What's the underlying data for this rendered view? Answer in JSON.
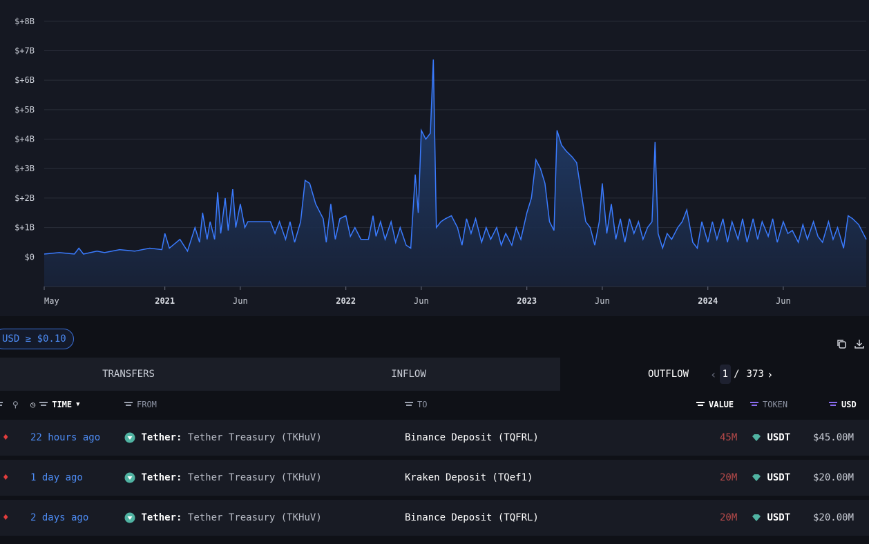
{
  "chart_data": {
    "type": "area",
    "y_ticks": [
      "$+8B",
      "$+7B",
      "$+6B",
      "$+5B",
      "$+4B",
      "$+3B",
      "$+2B",
      "$+1B",
      "$0"
    ],
    "y_unit": "USD billions",
    "ylim": [
      -1,
      8.3
    ],
    "x_ticks": [
      {
        "label": "May",
        "bold": false,
        "t": 0
      },
      {
        "label": "2021",
        "bold": true,
        "t": 8
      },
      {
        "label": "Jun",
        "bold": false,
        "t": 13
      },
      {
        "label": "2022",
        "bold": true,
        "t": 20
      },
      {
        "label": "Jun",
        "bold": false,
        "t": 25
      },
      {
        "label": "2023",
        "bold": true,
        "t": 32
      },
      {
        "label": "Jun",
        "bold": false,
        "t": 37
      },
      {
        "label": "2024",
        "bold": true,
        "t": 44
      },
      {
        "label": "Jun",
        "bold": false,
        "t": 49
      }
    ],
    "x_range": [
      0,
      54.5
    ],
    "series": [
      {
        "values": [
          [
            0,
            0.1
          ],
          [
            1,
            0.15
          ],
          [
            2,
            0.1
          ],
          [
            2.3,
            0.3
          ],
          [
            2.6,
            0.1
          ],
          [
            3.5,
            0.2
          ],
          [
            4,
            0.15
          ],
          [
            5,
            0.25
          ],
          [
            6,
            0.2
          ],
          [
            7,
            0.3
          ],
          [
            7.8,
            0.25
          ],
          [
            8,
            0.8
          ],
          [
            8.3,
            0.3
          ],
          [
            9,
            0.6
          ],
          [
            9.5,
            0.2
          ],
          [
            10,
            1.0
          ],
          [
            10.3,
            0.5
          ],
          [
            10.5,
            1.5
          ],
          [
            10.8,
            0.6
          ],
          [
            11,
            1.2
          ],
          [
            11.3,
            0.6
          ],
          [
            11.5,
            2.2
          ],
          [
            11.7,
            0.8
          ],
          [
            12,
            2.0
          ],
          [
            12.2,
            0.9
          ],
          [
            12.5,
            2.3
          ],
          [
            12.7,
            1.0
          ],
          [
            13,
            1.8
          ],
          [
            13.3,
            1.0
          ],
          [
            13.5,
            1.2
          ],
          [
            15,
            1.2
          ],
          [
            15.3,
            0.8
          ],
          [
            15.6,
            1.2
          ],
          [
            16,
            0.6
          ],
          [
            16.3,
            1.2
          ],
          [
            16.6,
            0.5
          ],
          [
            17,
            1.2
          ],
          [
            17.3,
            2.6
          ],
          [
            17.6,
            2.5
          ],
          [
            18,
            1.8
          ],
          [
            18.5,
            1.3
          ],
          [
            18.7,
            0.5
          ],
          [
            19,
            1.8
          ],
          [
            19.3,
            0.6
          ],
          [
            19.6,
            1.3
          ],
          [
            20,
            1.4
          ],
          [
            20.3,
            0.7
          ],
          [
            20.6,
            1.0
          ],
          [
            21,
            0.6
          ],
          [
            21.5,
            0.6
          ],
          [
            21.8,
            1.4
          ],
          [
            22,
            0.7
          ],
          [
            22.3,
            1.2
          ],
          [
            22.6,
            0.6
          ],
          [
            23,
            1.2
          ],
          [
            23.3,
            0.5
          ],
          [
            23.6,
            1.0
          ],
          [
            24,
            0.4
          ],
          [
            24.3,
            0.3
          ],
          [
            24.6,
            2.8
          ],
          [
            24.8,
            1.5
          ],
          [
            25,
            4.3
          ],
          [
            25.3,
            4.0
          ],
          [
            25.6,
            4.2
          ],
          [
            25.8,
            6.7
          ],
          [
            26,
            1.0
          ],
          [
            26.3,
            1.2
          ],
          [
            26.6,
            1.3
          ],
          [
            27,
            1.4
          ],
          [
            27.4,
            1.0
          ],
          [
            27.7,
            0.4
          ],
          [
            28,
            1.3
          ],
          [
            28.3,
            0.8
          ],
          [
            28.6,
            1.3
          ],
          [
            29,
            0.5
          ],
          [
            29.3,
            1.0
          ],
          [
            29.6,
            0.6
          ],
          [
            30,
            1.0
          ],
          [
            30.3,
            0.4
          ],
          [
            30.6,
            0.8
          ],
          [
            31,
            0.4
          ],
          [
            31.3,
            1.0
          ],
          [
            31.6,
            0.6
          ],
          [
            32,
            1.5
          ],
          [
            32.3,
            2.0
          ],
          [
            32.6,
            3.3
          ],
          [
            32.9,
            3.0
          ],
          [
            33.2,
            2.5
          ],
          [
            33.5,
            1.2
          ],
          [
            33.8,
            0.9
          ],
          [
            34,
            4.3
          ],
          [
            34.3,
            3.8
          ],
          [
            34.6,
            3.6
          ],
          [
            35,
            3.4
          ],
          [
            35.3,
            3.2
          ],
          [
            35.6,
            2.2
          ],
          [
            35.9,
            1.2
          ],
          [
            36.2,
            1.0
          ],
          [
            36.5,
            0.4
          ],
          [
            36.8,
            1.2
          ],
          [
            37,
            2.5
          ],
          [
            37.3,
            0.8
          ],
          [
            37.6,
            1.8
          ],
          [
            37.9,
            0.6
          ],
          [
            38.2,
            1.3
          ],
          [
            38.5,
            0.5
          ],
          [
            38.8,
            1.3
          ],
          [
            39.1,
            0.8
          ],
          [
            39.4,
            1.2
          ],
          [
            39.7,
            0.6
          ],
          [
            40,
            1.0
          ],
          [
            40.3,
            1.2
          ],
          [
            40.5,
            3.9
          ],
          [
            40.7,
            0.8
          ],
          [
            41,
            0.3
          ],
          [
            41.3,
            0.8
          ],
          [
            41.6,
            0.6
          ],
          [
            42,
            1.0
          ],
          [
            42.3,
            1.2
          ],
          [
            42.6,
            1.6
          ],
          [
            43,
            0.5
          ],
          [
            43.3,
            0.3
          ],
          [
            43.6,
            1.2
          ],
          [
            44,
            0.5
          ],
          [
            44.3,
            1.2
          ],
          [
            44.6,
            0.6
          ],
          [
            45,
            1.3
          ],
          [
            45.3,
            0.5
          ],
          [
            45.6,
            1.2
          ],
          [
            46,
            0.6
          ],
          [
            46.3,
            1.3
          ],
          [
            46.6,
            0.5
          ],
          [
            47,
            1.3
          ],
          [
            47.3,
            0.6
          ],
          [
            47.6,
            1.2
          ],
          [
            48,
            0.7
          ],
          [
            48.3,
            1.3
          ],
          [
            48.6,
            0.5
          ],
          [
            49,
            1.2
          ],
          [
            49.3,
            0.8
          ],
          [
            49.6,
            0.9
          ],
          [
            50,
            0.5
          ],
          [
            50.3,
            1.1
          ],
          [
            50.6,
            0.6
          ],
          [
            51,
            1.2
          ],
          [
            51.3,
            0.7
          ],
          [
            51.6,
            0.5
          ],
          [
            52,
            1.2
          ],
          [
            52.3,
            0.6
          ],
          [
            52.6,
            1.0
          ],
          [
            53,
            0.3
          ],
          [
            53.3,
            1.4
          ],
          [
            53.6,
            1.3
          ],
          [
            54,
            1.1
          ],
          [
            54.3,
            0.8
          ],
          [
            54.5,
            0.6
          ]
        ]
      }
    ],
    "colors": {
      "line": "#3a7bff",
      "fill_top": "#1f3f78",
      "fill_bottom": "#182238",
      "grid": "#2a2e3a"
    }
  },
  "filter": {
    "label": "USD ≥ $0.10"
  },
  "tabs": [
    {
      "label": "TRANSFERS"
    },
    {
      "label": "INFLOW"
    },
    {
      "label": "OUTFLOW"
    }
  ],
  "pager": {
    "current": "1",
    "sep": "/",
    "total": "373"
  },
  "columns": {
    "time": "TIME",
    "from": "FROM",
    "to": "TO",
    "value": "VALUE",
    "token": "TOKEN",
    "usd": "USD"
  },
  "rows": [
    {
      "time": "22 hours ago",
      "from_entity": "Tether:",
      "from_label": "Tether Treasury (TKHuV)",
      "to": "Binance Deposit (TQFRL)",
      "value": "45M",
      "token": "USDT",
      "usd": "$45.00M"
    },
    {
      "time": "1 day ago",
      "from_entity": "Tether:",
      "from_label": "Tether Treasury (TKHuV)",
      "to": "Kraken Deposit (TQef1)",
      "value": "20M",
      "token": "USDT",
      "usd": "$20.00M"
    },
    {
      "time": "2 days ago",
      "from_entity": "Tether:",
      "from_label": "Tether Treasury (TKHuV)",
      "to": "Binance Deposit (TQFRL)",
      "value": "20M",
      "token": "USDT",
      "usd": "$20.00M"
    }
  ]
}
